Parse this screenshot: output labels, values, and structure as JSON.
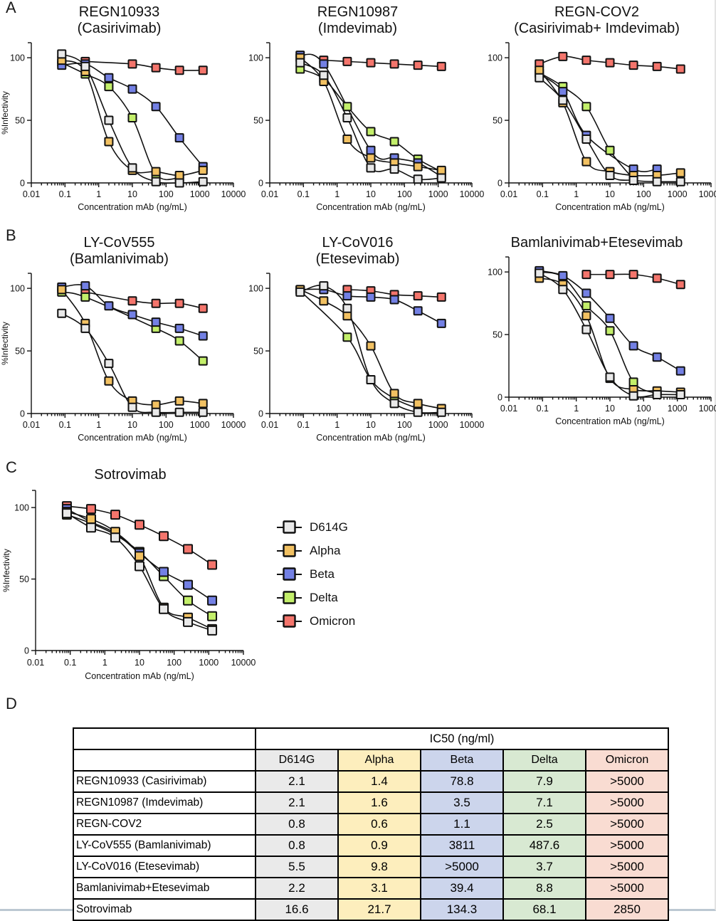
{
  "panels": {
    "a": "A",
    "b": "B",
    "c": "C",
    "d": "D"
  },
  "variants": [
    {
      "name": "D614G",
      "color": "#e9e9e9"
    },
    {
      "name": "Alpha",
      "color": "#f2c162"
    },
    {
      "name": "Beta",
      "color": "#7380e4"
    },
    {
      "name": "Delta",
      "color": "#c3ef6a"
    },
    {
      "name": "Omicron",
      "color": "#f4756c"
    }
  ],
  "axis": {
    "xlabel": "Concentration mAb (ng/mL)",
    "ylabel": "%Infectivity",
    "xticks": [
      "0.01",
      "0.1",
      "1",
      "10",
      "100",
      "1000",
      "10000"
    ],
    "yticks": [
      0,
      50,
      100
    ],
    "xlim": [
      0.01,
      10000
    ],
    "ylim": [
      0,
      112
    ],
    "log_x": true,
    "grid": false
  },
  "chart_data": [
    {
      "id": "regn10933",
      "type": "line",
      "title": "REGN10933",
      "subtitle": "(Casirivimab)",
      "size": "small",
      "show_ylabel": true,
      "x": [
        0.08,
        0.4,
        2,
        10,
        50,
        250,
        1250
      ],
      "series": [
        {
          "name": "D614G",
          "values": [
            103,
            93,
            50,
            12,
            1,
            0,
            1
          ]
        },
        {
          "name": "Alpha",
          "values": [
            98,
            89,
            33,
            10,
            9,
            6,
            10
          ]
        },
        {
          "name": "Beta",
          "values": [
            94,
            95,
            84,
            75,
            61,
            36,
            13
          ]
        },
        {
          "name": "Delta",
          "values": [
            96,
            87,
            77,
            52,
            7,
            4,
            null
          ]
        },
        {
          "name": "Omicron",
          "values": [
            null,
            97,
            null,
            95,
            92,
            90,
            90
          ]
        }
      ]
    },
    {
      "id": "regn10987",
      "type": "line",
      "title": "REGN10987",
      "subtitle": "(Imdevimab)",
      "size": "small",
      "show_ylabel": false,
      "x": [
        0.08,
        0.4,
        2,
        10,
        50,
        250,
        1250
      ],
      "series": [
        {
          "name": "D614G",
          "values": [
            96,
            86,
            52,
            12,
            11,
            3,
            4
          ]
        },
        {
          "name": "Alpha",
          "values": [
            100,
            81,
            35,
            20,
            16,
            13,
            10
          ]
        },
        {
          "name": "Beta",
          "values": [
            102,
            95,
            null,
            26,
            20,
            16,
            5
          ]
        },
        {
          "name": "Delta",
          "values": [
            91,
            83,
            61,
            41,
            33,
            19,
            9
          ]
        },
        {
          "name": "Omicron",
          "values": [
            null,
            98,
            97,
            96,
            95,
            94,
            93
          ]
        }
      ]
    },
    {
      "id": "regn-cov2",
      "type": "line",
      "title": "REGN-COV2",
      "subtitle": "(Casirivimab+ Imdevimab)",
      "size": "small",
      "show_ylabel": false,
      "x": [
        0.08,
        0.4,
        2,
        10,
        50,
        250,
        1250
      ],
      "series": [
        {
          "name": "D614G",
          "values": [
            84,
            66,
            35,
            6,
            2,
            1,
            1
          ]
        },
        {
          "name": "Alpha",
          "values": [
            90,
            64,
            17,
            9,
            6,
            6,
            8
          ]
        },
        {
          "name": "Beta",
          "values": [
            87,
            73,
            38,
            null,
            11,
            11,
            null
          ]
        },
        {
          "name": "Delta",
          "values": [
            88,
            77,
            61,
            26,
            3,
            null,
            null
          ]
        },
        {
          "name": "Omicron",
          "values": [
            95,
            101,
            98,
            96,
            94,
            93,
            91
          ]
        }
      ]
    },
    {
      "id": "ly-cov555",
      "type": "line",
      "title": "LY-CoV555",
      "subtitle": "(Bamlanivimab)",
      "size": "small",
      "show_ylabel": true,
      "x": [
        0.08,
        0.4,
        2,
        10,
        50,
        250,
        1250
      ],
      "series": [
        {
          "name": "D614G",
          "values": [
            80,
            68,
            40,
            5,
            1,
            1,
            1
          ]
        },
        {
          "name": "Alpha",
          "values": [
            99,
            72,
            26,
            10,
            7,
            10,
            8
          ]
        },
        {
          "name": "Beta",
          "values": [
            101,
            102,
            86,
            79,
            73,
            68,
            62
          ]
        },
        {
          "name": "Delta",
          "values": [
            97,
            93,
            null,
            null,
            68,
            58,
            42
          ]
        },
        {
          "name": "Omicron",
          "values": [
            null,
            97,
            null,
            90,
            88,
            88,
            84
          ]
        }
      ]
    },
    {
      "id": "ly-cov016",
      "type": "line",
      "title": "LY-CoV016",
      "subtitle": "(Etesevimab)",
      "size": "small",
      "show_ylabel": false,
      "x": [
        0.08,
        0.4,
        2,
        10,
        50,
        250,
        1250
      ],
      "series": [
        {
          "name": "D614G",
          "values": [
            97,
            102,
            84,
            27,
            8,
            1,
            1
          ]
        },
        {
          "name": "Alpha",
          "values": [
            99,
            90,
            78,
            54,
            16,
            8,
            4
          ]
        },
        {
          "name": "Beta",
          "values": [
            99,
            99,
            94,
            93,
            91,
            82,
            72
          ]
        },
        {
          "name": "Delta",
          "values": [
            98,
            null,
            61,
            27,
            12,
            4,
            null
          ]
        },
        {
          "name": "Omicron",
          "values": [
            null,
            null,
            99,
            98,
            95,
            94,
            93
          ]
        }
      ]
    },
    {
      "id": "bamlanivimab-etesevimab",
      "type": "line",
      "title": "Bamlanivimab+Etesevimab",
      "subtitle": "",
      "size": "small",
      "show_ylabel": false,
      "x": [
        0.08,
        0.4,
        2,
        10,
        50,
        250,
        1250
      ],
      "series": [
        {
          "name": "D614G",
          "values": [
            99,
            86,
            54,
            16,
            1,
            2,
            2
          ]
        },
        {
          "name": "Alpha",
          "values": [
            95,
            90,
            65,
            15,
            6,
            5,
            4
          ]
        },
        {
          "name": "Beta",
          "values": [
            101,
            97,
            83,
            63,
            41,
            32,
            21
          ]
        },
        {
          "name": "Delta",
          "values": [
            100,
            96,
            73,
            53,
            12,
            3,
            null
          ]
        },
        {
          "name": "Omicron",
          "values": [
            null,
            null,
            98,
            98,
            98,
            95,
            90
          ]
        }
      ]
    },
    {
      "id": "sotrovimab",
      "type": "line",
      "title": "Sotrovimab",
      "subtitle": "",
      "size": "large",
      "show_ylabel": true,
      "x": [
        0.08,
        0.4,
        2,
        10,
        50,
        250,
        1250
      ],
      "series": [
        {
          "name": "D614G",
          "values": [
            96,
            86,
            79,
            59,
            29,
            20,
            14
          ]
        },
        {
          "name": "Alpha",
          "values": [
            97,
            92,
            83,
            66,
            30,
            23,
            15
          ]
        },
        {
          "name": "Beta",
          "values": [
            99,
            90,
            82,
            68,
            55,
            46,
            35
          ]
        },
        {
          "name": "Delta",
          "values": [
            95,
            89,
            81,
            69,
            52,
            35,
            24
          ]
        },
        {
          "name": "Omicron",
          "values": [
            101,
            99,
            95,
            88,
            80,
            71,
            60
          ]
        }
      ]
    }
  ],
  "legend": {
    "items": [
      "D614G",
      "Alpha",
      "Beta",
      "Delta",
      "Omicron"
    ]
  },
  "table": {
    "group_header": "IC50 (ng/ml)",
    "columns": [
      "D614G",
      "Alpha",
      "Beta",
      "Delta",
      "Omicron"
    ],
    "column_tints": [
      "#eaeaea",
      "#fdeebd",
      "#ccd5ec",
      "#d8e9d2",
      "#f9dcd2"
    ],
    "rows": [
      {
        "label": "REGN10933 (Casirivimab)",
        "values": [
          "2.1",
          "1.4",
          "78.8",
          "7.9",
          ">5000"
        ]
      },
      {
        "label": "REGN10987 (Imdevimab)",
        "values": [
          "2.1",
          "1.6",
          "3.5",
          "7.1",
          ">5000"
        ]
      },
      {
        "label": "REGN-COV2",
        "values": [
          "0.8",
          "0.6",
          "1.1",
          "2.5",
          ">5000"
        ]
      },
      {
        "label": "LY-CoV555 (Bamlanivimab)",
        "values": [
          "0.8",
          "0.9",
          "3811",
          "487.6",
          ">5000"
        ]
      },
      {
        "label": "LY-CoV016 (Etesevimab)",
        "values": [
          "5.5",
          "9.8",
          ">5000",
          "3.7",
          ">5000"
        ]
      },
      {
        "label": "Bamlanivimab+Etesevimab",
        "values": [
          "2.2",
          "3.1",
          "39.4",
          "8.8",
          ">5000"
        ]
      },
      {
        "label": "Sotrovimab",
        "values": [
          "16.6",
          "21.7",
          "134.3",
          "68.1",
          "2850"
        ]
      }
    ]
  }
}
